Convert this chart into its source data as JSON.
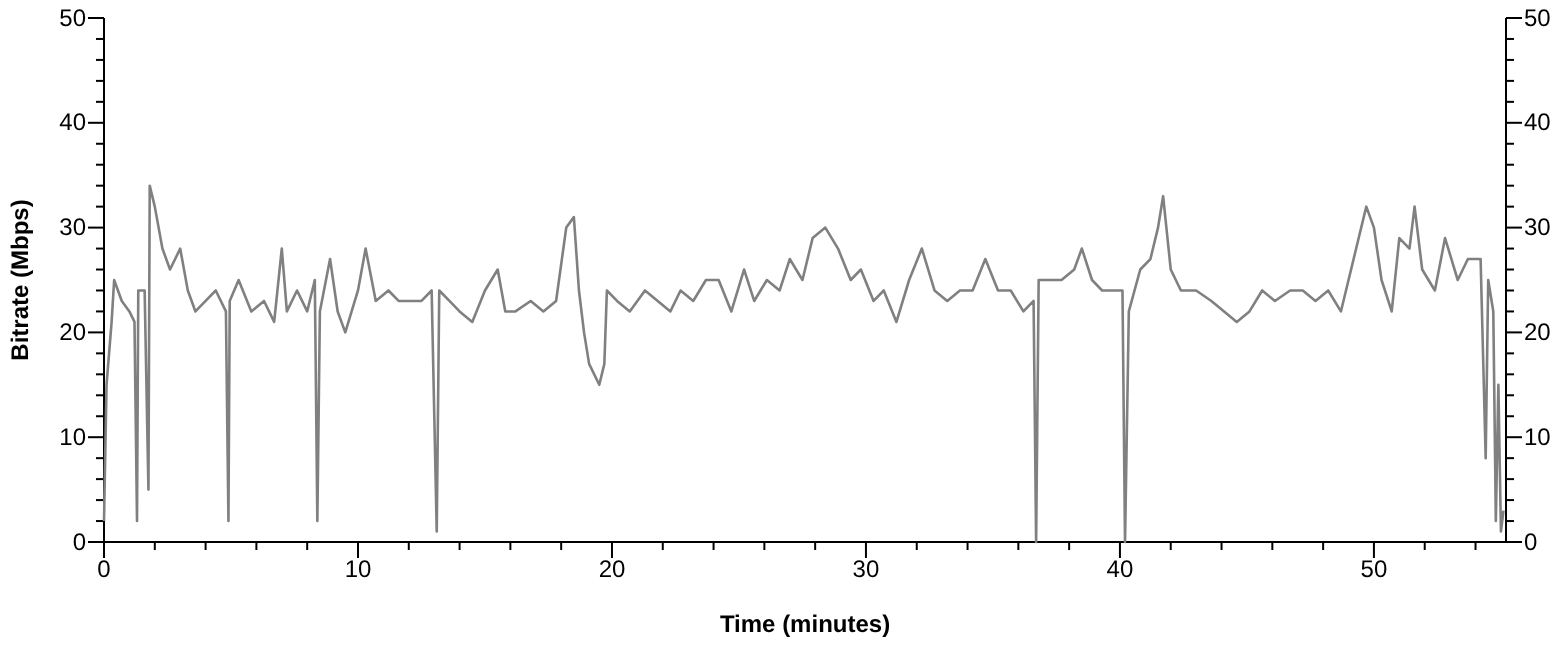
{
  "chart_data": {
    "type": "line",
    "xlabel": "Time (minutes)",
    "ylabel": "Bitrate (Mbps)",
    "xlim": [
      0,
      55.2
    ],
    "ylim": [
      0,
      50
    ],
    "y2lim": [
      0,
      50
    ],
    "xticks": [
      0,
      {
        "value": 2,
        "label": null
      },
      {
        "value": 4,
        "label": null
      },
      {
        "value": 6,
        "label": null
      },
      {
        "value": 8,
        "label": null
      },
      10,
      {
        "value": 12,
        "label": null
      },
      {
        "value": 14,
        "label": null
      },
      {
        "value": 16,
        "label": null
      },
      {
        "value": 18,
        "label": null
      },
      20,
      {
        "value": 22,
        "label": null
      },
      {
        "value": 24,
        "label": null
      },
      {
        "value": 26,
        "label": null
      },
      {
        "value": 28,
        "label": null
      },
      30,
      {
        "value": 32,
        "label": null
      },
      {
        "value": 34,
        "label": null
      },
      {
        "value": 36,
        "label": null
      },
      {
        "value": 38,
        "label": null
      },
      40,
      {
        "value": 42,
        "label": null
      },
      {
        "value": 44,
        "label": null
      },
      {
        "value": 46,
        "label": null
      },
      {
        "value": 48,
        "label": null
      },
      50,
      {
        "value": 52,
        "label": null
      },
      {
        "value": 54,
        "label": null
      }
    ],
    "yticks": [
      0,
      {
        "value": 2,
        "label": null
      },
      {
        "value": 4,
        "label": null
      },
      {
        "value": 6,
        "label": null
      },
      {
        "value": 8,
        "label": null
      },
      10,
      {
        "value": 12,
        "label": null
      },
      {
        "value": 14,
        "label": null
      },
      {
        "value": 16,
        "label": null
      },
      {
        "value": 18,
        "label": null
      },
      20,
      {
        "value": 22,
        "label": null
      },
      {
        "value": 24,
        "label": null
      },
      {
        "value": 26,
        "label": null
      },
      {
        "value": 28,
        "label": null
      },
      30,
      {
        "value": 32,
        "label": null
      },
      {
        "value": 34,
        "label": null
      },
      {
        "value": 36,
        "label": null
      },
      {
        "value": 38,
        "label": null
      },
      40,
      {
        "value": 42,
        "label": null
      },
      {
        "value": 44,
        "label": null
      },
      {
        "value": 46,
        "label": null
      },
      {
        "value": 48,
        "label": null
      },
      50
    ],
    "y2ticks": [
      0,
      {
        "value": 2,
        "label": null
      },
      {
        "value": 4,
        "label": null
      },
      {
        "value": 6,
        "label": null
      },
      {
        "value": 8,
        "label": null
      },
      10,
      {
        "value": 12,
        "label": null
      },
      {
        "value": 14,
        "label": null
      },
      {
        "value": 16,
        "label": null
      },
      {
        "value": 18,
        "label": null
      },
      20,
      {
        "value": 22,
        "label": null
      },
      {
        "value": 24,
        "label": null
      },
      {
        "value": 26,
        "label": null
      },
      {
        "value": 28,
        "label": null
      },
      30,
      {
        "value": 32,
        "label": null
      },
      {
        "value": 34,
        "label": null
      },
      {
        "value": 36,
        "label": null
      },
      {
        "value": 38,
        "label": null
      },
      40,
      {
        "value": 42,
        "label": null
      },
      {
        "value": 44,
        "label": null
      },
      {
        "value": 46,
        "label": null
      },
      {
        "value": 48,
        "label": null
      },
      50
    ],
    "grid": false,
    "marker": "none",
    "line_style": "solid",
    "series": [
      {
        "color": "#808080",
        "x": [
          0,
          0.1,
          0.3,
          0.4,
          0.7,
          1.0,
          1.2,
          1.3,
          1.35,
          1.6,
          1.75,
          1.8,
          2.0,
          2.3,
          2.6,
          3.0,
          3.3,
          3.6,
          4.0,
          4.4,
          4.8,
          4.9,
          4.95,
          5.3,
          5.8,
          6.3,
          6.7,
          7.0,
          7.2,
          7.6,
          8.0,
          8.3,
          8.4,
          8.5,
          8.9,
          9.2,
          9.5,
          10.0,
          10.3,
          10.7,
          11.2,
          11.6,
          12.0,
          12.5,
          12.9,
          13.1,
          13.2,
          13.6,
          14.0,
          14.5,
          15.0,
          15.5,
          15.8,
          16.2,
          16.8,
          17.3,
          17.8,
          18.2,
          18.5,
          18.7,
          18.9,
          19.1,
          19.5,
          19.7,
          19.8,
          20.2,
          20.7,
          21.3,
          21.8,
          22.3,
          22.7,
          23.2,
          23.7,
          24.2,
          24.7,
          25.2,
          25.6,
          26.1,
          26.6,
          27.0,
          27.5,
          27.9,
          28.4,
          28.9,
          29.4,
          29.8,
          30.3,
          30.7,
          31.2,
          31.7,
          32.2,
          32.7,
          33.2,
          33.7,
          34.2,
          34.7,
          35.2,
          35.7,
          36.2,
          36.6,
          36.7,
          36.8,
          37.2,
          37.7,
          38.2,
          38.5,
          38.9,
          39.3,
          39.7,
          40.1,
          40.2,
          40.35,
          40.8,
          41.2,
          41.5,
          41.7,
          42.0,
          42.4,
          43.0,
          43.6,
          44.1,
          44.6,
          45.1,
          45.6,
          46.1,
          46.7,
          47.2,
          47.7,
          48.2,
          48.7,
          49.3,
          49.7,
          50.0,
          50.3,
          50.7,
          51.0,
          51.4,
          51.6,
          51.9,
          52.4,
          52.8,
          53.3,
          53.7,
          54.2,
          54.4,
          54.5,
          54.7,
          54.8,
          54.9,
          55.0,
          55.1
        ],
        "values": [
          2,
          15,
          21,
          25,
          23,
          22,
          21,
          2,
          24,
          24,
          5,
          34,
          32,
          28,
          26,
          28,
          24,
          22,
          23,
          24,
          22,
          2,
          23,
          25,
          22,
          23,
          21,
          28,
          22,
          24,
          22,
          25,
          2,
          22,
          27,
          22,
          20,
          24,
          28,
          23,
          24,
          23,
          23,
          23,
          24,
          1,
          24,
          23,
          22,
          21,
          24,
          26,
          22,
          22,
          23,
          22,
          23,
          30,
          31,
          24,
          20,
          17,
          15,
          17,
          24,
          23,
          22,
          24,
          23,
          22,
          24,
          23,
          25,
          25,
          22,
          26,
          23,
          25,
          24,
          27,
          25,
          29,
          30,
          28,
          25,
          26,
          23,
          24,
          21,
          25,
          28,
          24,
          23,
          24,
          24,
          27,
          24,
          24,
          22,
          23,
          0,
          25,
          25,
          25,
          26,
          28,
          25,
          24,
          24,
          24,
          0,
          22,
          26,
          27,
          30,
          33,
          26,
          24,
          24,
          23,
          22,
          21,
          22,
          24,
          23,
          24,
          24,
          23,
          24,
          22,
          28,
          32,
          30,
          25,
          22,
          29,
          28,
          32,
          26,
          24,
          29,
          25,
          27,
          27,
          8,
          25,
          22,
          2,
          15,
          1,
          3
        ]
      }
    ]
  }
}
